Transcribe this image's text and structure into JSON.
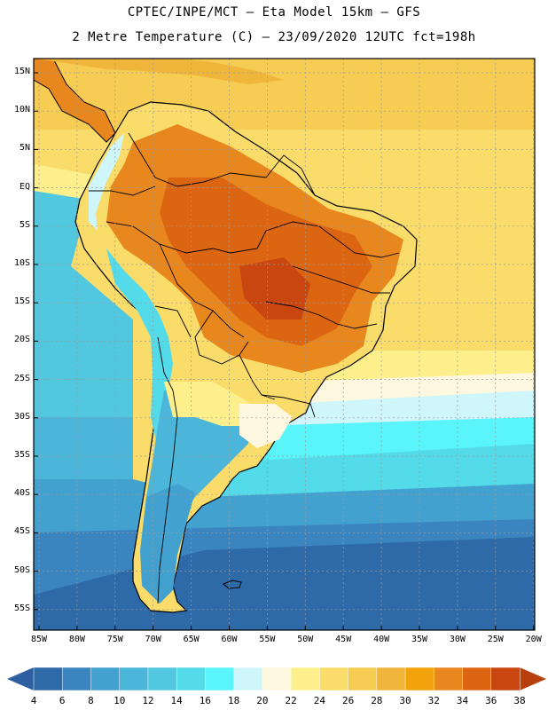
{
  "header": {
    "line1": "CPTEC/INPE/MCT –  Eta Model 15km – GFS",
    "line2": "2 Metre Temperature (C) – 23/09/2020 12UTC fct=198h"
  },
  "map": {
    "lat_labels": [
      "15N",
      "10N",
      "5N",
      "EQ",
      "5S",
      "10S",
      "15S",
      "20S",
      "25S",
      "30S",
      "35S",
      "40S",
      "45S",
      "50S",
      "55S"
    ],
    "lon_labels": [
      "85W",
      "80W",
      "75W",
      "70W",
      "65W",
      "60W",
      "55W",
      "50W",
      "45W",
      "40W",
      "35W",
      "30W",
      "25W",
      "20W"
    ],
    "region": "South America"
  },
  "colorbar": {
    "ticks": [
      "4",
      "6",
      "8",
      "10",
      "12",
      "14",
      "16",
      "18",
      "20",
      "22",
      "24",
      "26",
      "28",
      "30",
      "32",
      "34",
      "36",
      "38"
    ],
    "colors": [
      "#2e6aa8",
      "#3a84bf",
      "#43a1cf",
      "#4bb6d9",
      "#52c8e0",
      "#54dbe9",
      "#5af4fb",
      "#cff6fb",
      "#fff8e0",
      "#fdf08c",
      "#fadc6a",
      "#f6cc52",
      "#f0b63c",
      "#f2a20a",
      "#e8871e",
      "#dc6512",
      "#c94610"
    ],
    "left_arrow_color": "#2e5fa3",
    "right_arrow_color": "#b8400e"
  }
}
